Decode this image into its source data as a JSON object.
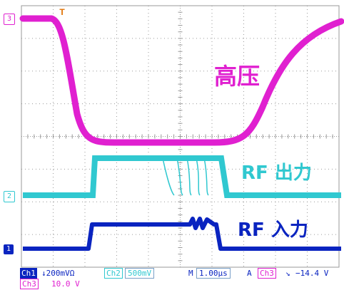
{
  "screen": {
    "background": "#ffffff",
    "grid_color": "#9a9a9a",
    "divisions_x": 10,
    "divisions_y": 8
  },
  "traces": {
    "hv": {
      "label": "高压",
      "color": "#e020d0",
      "marker": "3"
    },
    "rf_out": {
      "label": "RF 出力",
      "color": "#30c8d0",
      "marker": "2"
    },
    "rf_in": {
      "label": "RF 入力",
      "color": "#0a24c0",
      "marker": "1"
    }
  },
  "trigger_marker": "T",
  "status": {
    "ch1_tag": "Ch1",
    "ch1_scale": "↓200mVΩ",
    "ch2_tag": "Ch2",
    "ch2_scale": "500mV",
    "time_tag": "M",
    "time_scale": "1.00μs",
    "trig_tag": "A",
    "trig_src": "Ch3",
    "trig_slope": "↘",
    "trig_level": "−14.4 V",
    "ch3_tag": "Ch3",
    "ch3_scale": "10.0 V"
  }
}
